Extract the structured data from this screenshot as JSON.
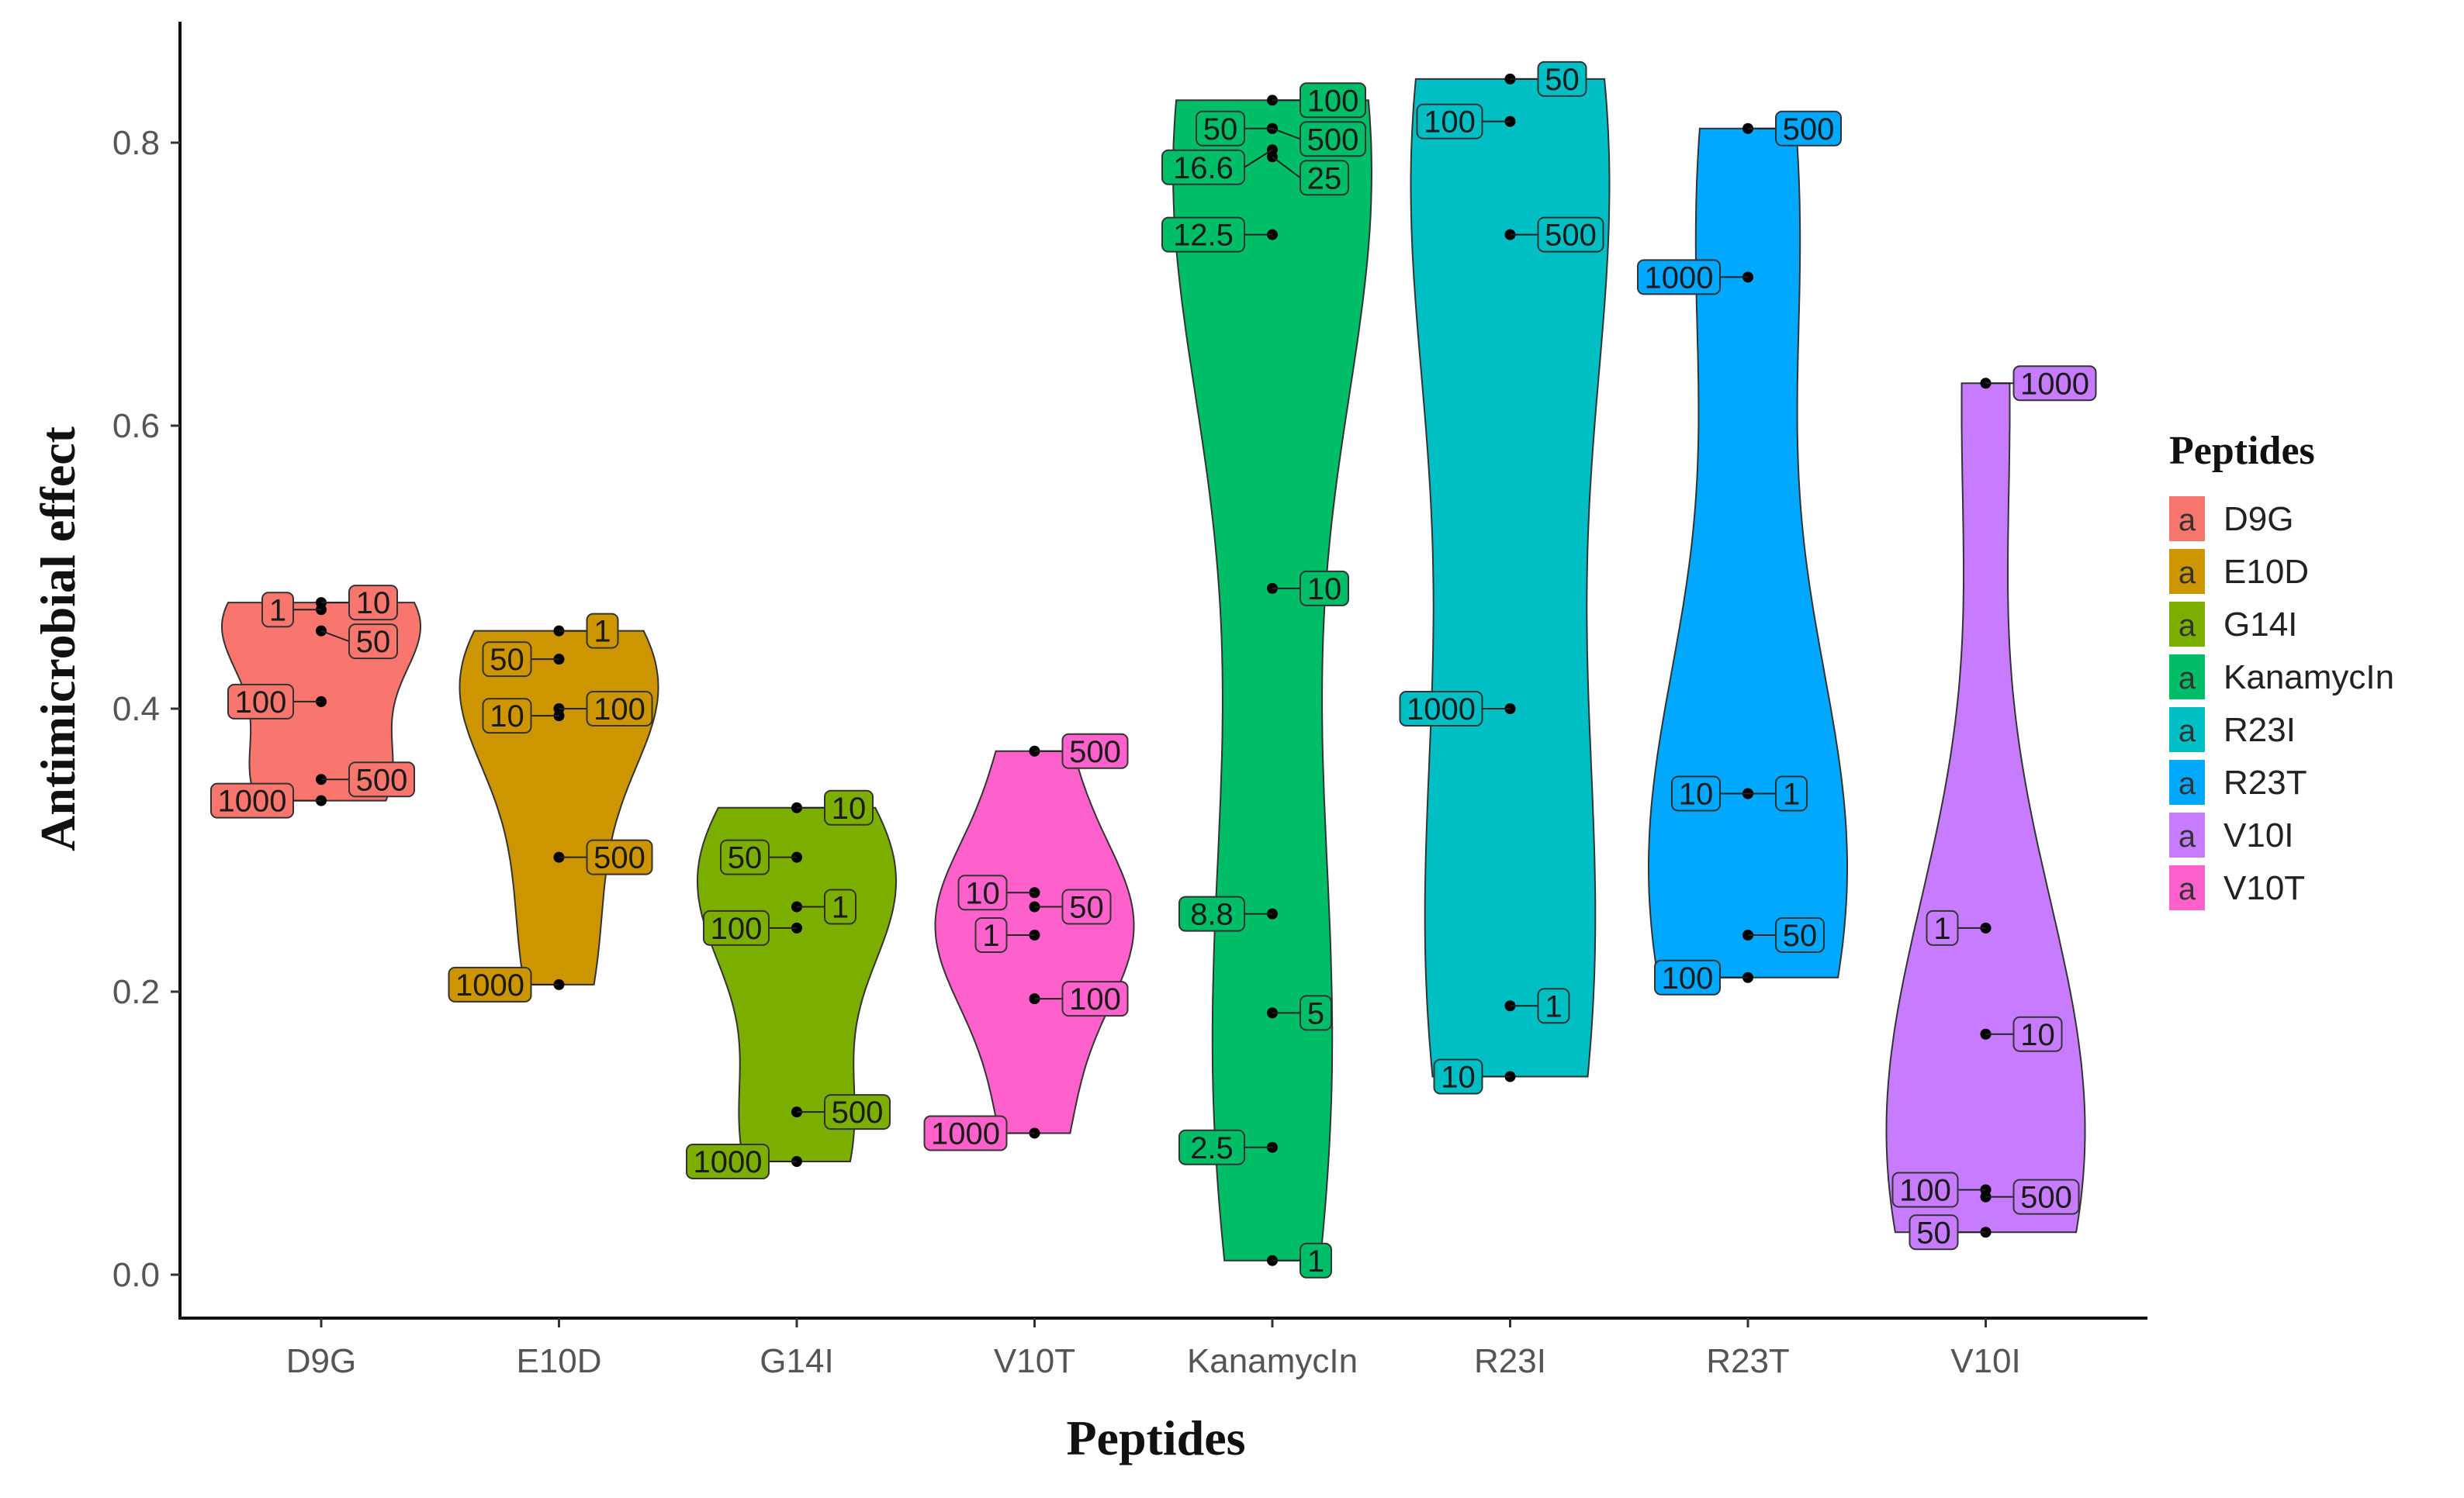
{
  "chart_data": {
    "type": "violin",
    "xlabel": "Peptides",
    "ylabel": "Antimicrobial effect",
    "ylim": [
      -0.03,
      0.88
    ],
    "yticks": [
      0.0,
      0.2,
      0.4,
      0.6,
      0.8
    ],
    "ytick_labels": [
      "0.0",
      "0.2",
      "0.4",
      "0.6",
      "0.8"
    ],
    "categories": [
      "D9G",
      "E10D",
      "G14I",
      "V10T",
      "KanamycIn",
      "R23I",
      "R23T",
      "V10I"
    ],
    "legend": {
      "title": "Peptides",
      "position": "right",
      "key_glyph": "a",
      "entries": [
        "D9G",
        "E10D",
        "G14I",
        "KanamycIn",
        "R23I",
        "R23T",
        "V10I",
        "V10T"
      ]
    },
    "colors": {
      "D9G": "#F8766D",
      "E10D": "#CD9600",
      "G14I": "#7CAE00",
      "KanamycIn": "#00BE67",
      "R23I": "#00BFC4",
      "R23T": "#00A9FF",
      "V10I": "#C77CFF",
      "V10T": "#FF61CC"
    },
    "series": [
      {
        "name": "D9G",
        "points": [
          {
            "label": "10",
            "value": 0.475
          },
          {
            "label": "1",
            "value": 0.47
          },
          {
            "label": "50",
            "value": 0.455
          },
          {
            "label": "100",
            "value": 0.405
          },
          {
            "label": "500",
            "value": 0.35
          },
          {
            "label": "1000",
            "value": 0.335
          }
        ]
      },
      {
        "name": "E10D",
        "points": [
          {
            "label": "1",
            "value": 0.455
          },
          {
            "label": "50",
            "value": 0.435
          },
          {
            "label": "100",
            "value": 0.4
          },
          {
            "label": "10",
            "value": 0.395
          },
          {
            "label": "500",
            "value": 0.295
          },
          {
            "label": "1000",
            "value": 0.205
          }
        ]
      },
      {
        "name": "G14I",
        "points": [
          {
            "label": "10",
            "value": 0.33
          },
          {
            "label": "50",
            "value": 0.295
          },
          {
            "label": "1",
            "value": 0.26
          },
          {
            "label": "100",
            "value": 0.245
          },
          {
            "label": "500",
            "value": 0.115
          },
          {
            "label": "1000",
            "value": 0.08
          }
        ]
      },
      {
        "name": "V10T",
        "points": [
          {
            "label": "500",
            "value": 0.37
          },
          {
            "label": "10",
            "value": 0.27
          },
          {
            "label": "50",
            "value": 0.26
          },
          {
            "label": "1",
            "value": 0.24
          },
          {
            "label": "100",
            "value": 0.195
          },
          {
            "label": "1000",
            "value": 0.1
          }
        ]
      },
      {
        "name": "KanamycIn",
        "points": [
          {
            "label": "100",
            "value": 0.83
          },
          {
            "label": "50",
            "value": 0.81
          },
          {
            "label": "500",
            "value": 0.81
          },
          {
            "label": "16.6",
            "value": 0.795
          },
          {
            "label": "25",
            "value": 0.79
          },
          {
            "label": "12.5",
            "value": 0.735
          },
          {
            "label": "10",
            "value": 0.485
          },
          {
            "label": "8.8",
            "value": 0.255
          },
          {
            "label": "5",
            "value": 0.185
          },
          {
            "label": "2.5",
            "value": 0.09
          },
          {
            "label": "1",
            "value": 0.01
          }
        ]
      },
      {
        "name": "R23I",
        "points": [
          {
            "label": "50",
            "value": 0.845
          },
          {
            "label": "100",
            "value": 0.815
          },
          {
            "label": "500",
            "value": 0.735
          },
          {
            "label": "1000",
            "value": 0.4
          },
          {
            "label": "1",
            "value": 0.19
          },
          {
            "label": "10",
            "value": 0.14
          }
        ]
      },
      {
        "name": "R23T",
        "points": [
          {
            "label": "500",
            "value": 0.81
          },
          {
            "label": "1000",
            "value": 0.705
          },
          {
            "label": "1",
            "value": 0.34
          },
          {
            "label": "10",
            "value": 0.34
          },
          {
            "label": "50",
            "value": 0.24
          },
          {
            "label": "100",
            "value": 0.21
          }
        ]
      },
      {
        "name": "V10I",
        "points": [
          {
            "label": "1000",
            "value": 0.63
          },
          {
            "label": "1",
            "value": 0.245
          },
          {
            "label": "10",
            "value": 0.17
          },
          {
            "label": "100",
            "value": 0.06
          },
          {
            "label": "500",
            "value": 0.055
          },
          {
            "label": "50",
            "value": 0.03
          }
        ]
      }
    ]
  }
}
